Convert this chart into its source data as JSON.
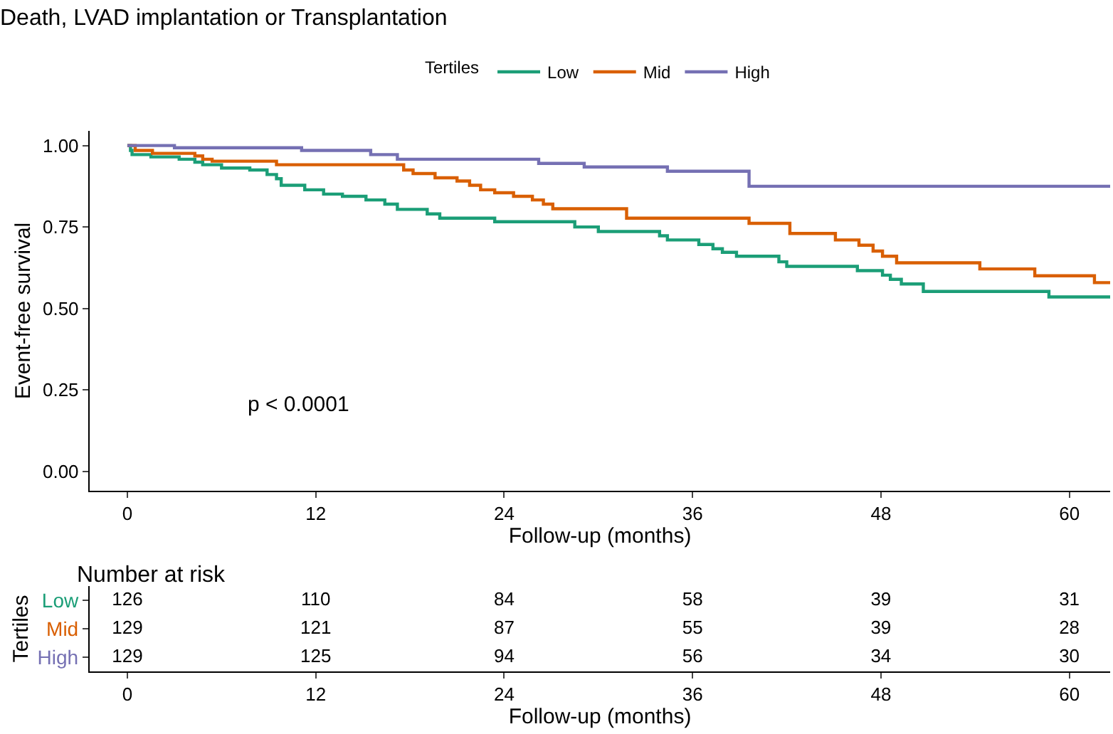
{
  "chart_data": [
    {
      "type": "step",
      "title": "Death, LVAD implantation or Transplantation",
      "xlabel": "Follow-up (months)",
      "ylabel": "Event-free survival",
      "legend_title": "Tertiles",
      "legend": "top",
      "xlim": [
        -2.4,
        62.6
      ],
      "ylim": [
        -0.06,
        1.045
      ],
      "xticks": [
        0,
        12,
        24,
        36,
        48,
        60
      ],
      "yticks": [
        {
          "value": 0,
          "label": "0.00"
        },
        {
          "value": 0.25,
          "label": "0.25"
        },
        {
          "value": 0.5,
          "label": "0.50"
        },
        {
          "value": 0.75,
          "label": "0.75"
        },
        {
          "value": 1,
          "label": "1.00"
        }
      ],
      "annotations": [
        "p < 0.0001"
      ],
      "series": [
        {
          "name": "Low",
          "color": "#1b9e77",
          "x": [
            0,
            0.2,
            0.3,
            1.5,
            3.3,
            4.3,
            4.8,
            6,
            7.8,
            8.9,
            9.5,
            9.8,
            11.3,
            12.5,
            13.7,
            15.2,
            16.4,
            17.2,
            19.1,
            19.9,
            23.4,
            28.5,
            30,
            33.9,
            34.4,
            36.4,
            37.3,
            37.9,
            38.8,
            41.5,
            42,
            46.5,
            48.1,
            48.6,
            49.3,
            50.7,
            58.7,
            62.6
          ],
          "values": [
            1,
            0.985,
            0.972,
            0.965,
            0.958,
            0.949,
            0.941,
            0.931,
            0.925,
            0.911,
            0.898,
            0.878,
            0.864,
            0.851,
            0.844,
            0.833,
            0.82,
            0.804,
            0.79,
            0.777,
            0.766,
            0.75,
            0.736,
            0.723,
            0.71,
            0.696,
            0.683,
            0.672,
            0.66,
            0.643,
            0.629,
            0.616,
            0.602,
            0.589,
            0.575,
            0.552,
            0.535,
            0.535
          ]
        },
        {
          "name": "Mid",
          "color": "#d95f02",
          "x": [
            0,
            0.5,
            1.6,
            4.3,
            4.8,
            5.4,
            9.5,
            17.6,
            18.2,
            19.6,
            21,
            21.8,
            22.5,
            23.4,
            24.6,
            25.8,
            26.5,
            27.1,
            31.8,
            39.6,
            42.2,
            45.1,
            46.6,
            47.5,
            48.1,
            49,
            54.3,
            57.8,
            61.6,
            62.6
          ],
          "values": [
            1,
            0.985,
            0.976,
            0.968,
            0.958,
            0.952,
            0.941,
            0.925,
            0.914,
            0.901,
            0.891,
            0.878,
            0.864,
            0.855,
            0.844,
            0.833,
            0.82,
            0.806,
            0.777,
            0.761,
            0.73,
            0.71,
            0.694,
            0.676,
            0.66,
            0.64,
            0.621,
            0.6,
            0.579,
            0.579
          ]
        },
        {
          "name": "High",
          "color": "#7570b3",
          "x": [
            0,
            3,
            11.1,
            15.5,
            17.2,
            26.2,
            29.1,
            34.4,
            39.6,
            62.6
          ],
          "values": [
            1,
            0.993,
            0.985,
            0.972,
            0.958,
            0.945,
            0.934,
            0.921,
            0.875,
            0.875
          ]
        }
      ]
    },
    {
      "type": "heatmap",
      "title": "Number at risk",
      "xlabel": "Follow-up (months)",
      "ylabel": "Tertiles",
      "data_labels": true,
      "x": [
        0,
        12,
        24,
        36,
        48,
        60
      ],
      "xlim": [
        -2.4,
        62.6
      ],
      "xticks": [
        0,
        12,
        24,
        36,
        48,
        60
      ],
      "y_categories": [
        "Low",
        "Mid",
        "High"
      ],
      "cells": [
        [
          126,
          110,
          84,
          58,
          39,
          31
        ],
        [
          129,
          121,
          87,
          55,
          39,
          28
        ],
        [
          129,
          125,
          94,
          56,
          34,
          30
        ]
      ]
    }
  ]
}
